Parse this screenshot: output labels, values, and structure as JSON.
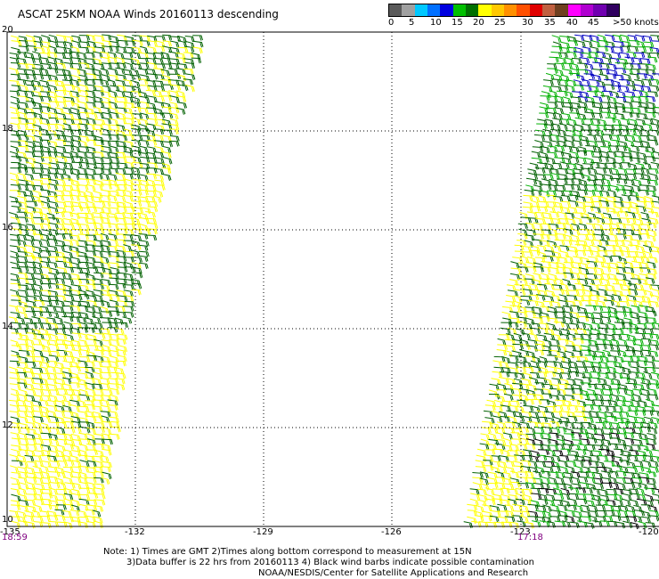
{
  "title": "ASCAT 25KM NOAA Winds 20160113 descending",
  "scale": {
    "colors": [
      "#5a5a5a",
      "#a0a0a0",
      "#00c8ff",
      "#0070ff",
      "#0000e0",
      "#00c000",
      "#007000",
      "#ffff00",
      "#ffc800",
      "#ff9000",
      "#ff5000",
      "#e00000",
      "#c06040",
      "#704020",
      "#ff00ff",
      "#b000d0",
      "#7000b0",
      "#300060"
    ],
    "labels": [
      "0",
      "5",
      "10",
      "15",
      "20",
      "25",
      "30",
      "35",
      "40",
      "45",
      ">50 knots"
    ]
  },
  "axes": {
    "lat_labels": [
      "20",
      "18",
      "16",
      "14",
      "12",
      "10"
    ],
    "lon_labels": [
      "-135",
      "-132",
      "-129",
      "-126",
      "-123",
      "-120"
    ]
  },
  "times": {
    "left": "18:59",
    "right": "17:18"
  },
  "notes": {
    "line1": "Note: 1) Times are GMT 2)Times along bottom correspond to measurement at 15N",
    "line2": "3)Data buffer is 22 hrs from 20160113 4) Black wind barbs indicate possible contamination",
    "line3": "NOAA/NESDIS/Center for Satellite Applications and Research"
  },
  "legend_colors": {
    "dark_green": "#006000",
    "green": "#00b000",
    "yellow": "#ffff00",
    "blue": "#0000c0",
    "black": "#000000"
  }
}
